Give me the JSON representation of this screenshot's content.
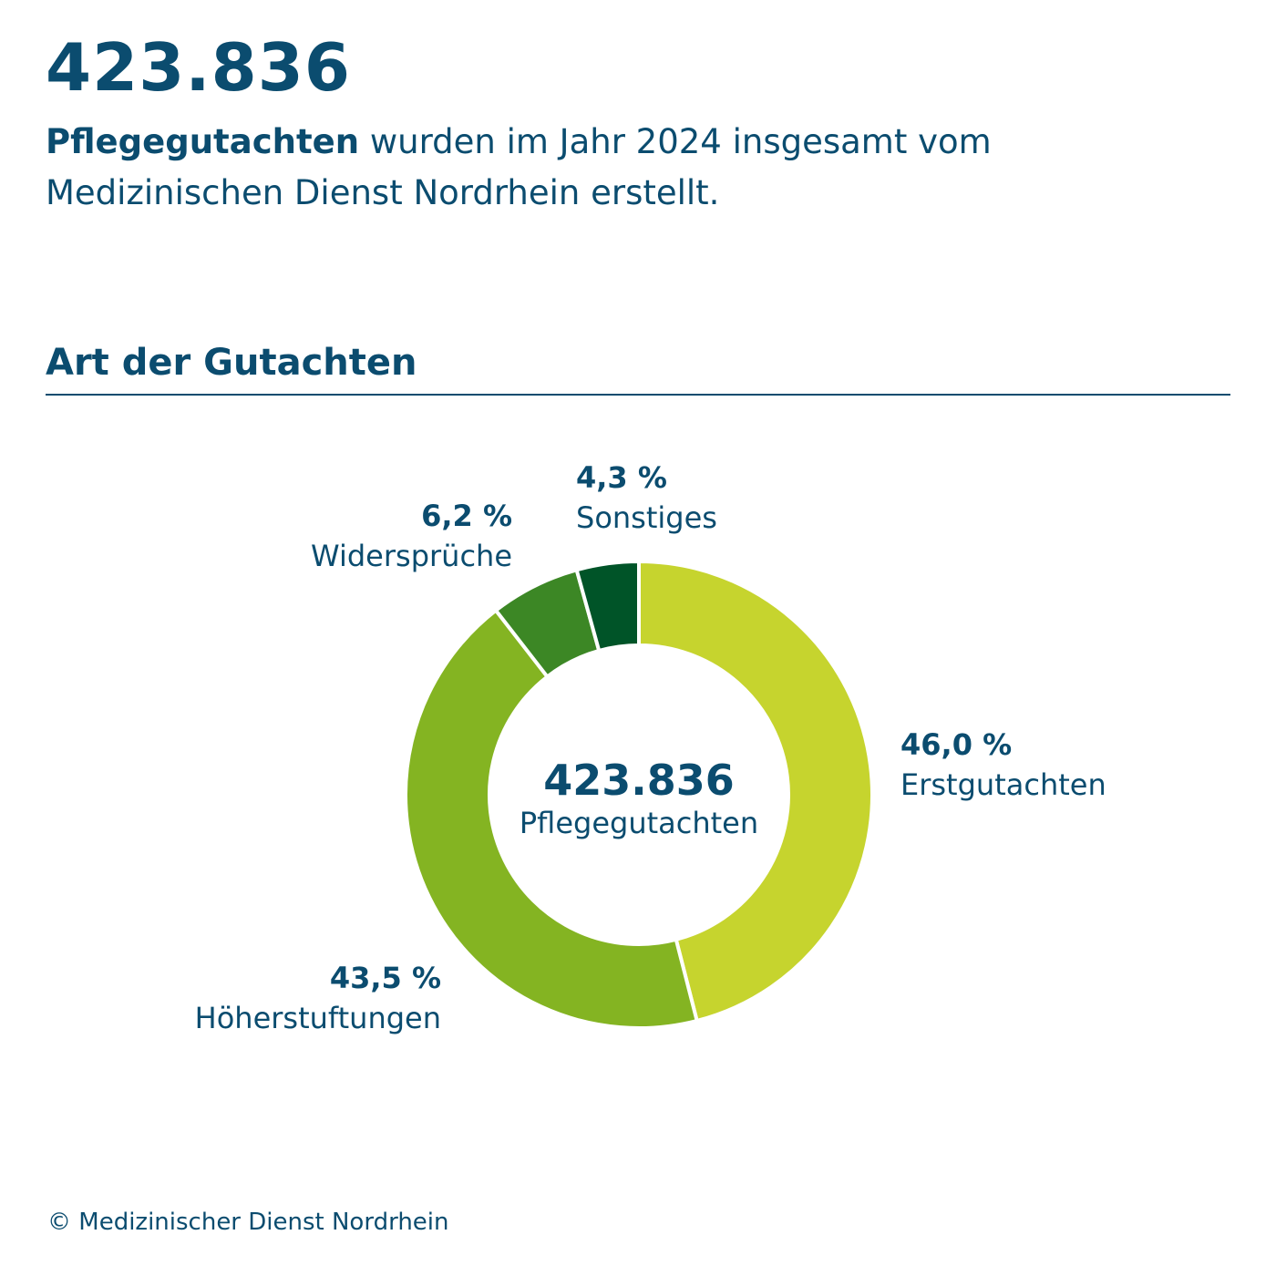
{
  "header": {
    "big_number": "423.836",
    "intro_bold": "Pflegegutachten",
    "intro_rest": " wurden im Jahr 2024 insgesamt vom Medizinischen Dienst Nordrhein erstellt."
  },
  "section_title": "Art der Gutachten",
  "copyright": "© Medizinischer Dienst Nordrhein",
  "chart_data": {
    "type": "pie",
    "title": "",
    "center_value": "423.836",
    "center_label": "Pflegegutachten",
    "slices": [
      {
        "label": "Erstgutachten",
        "value": 46.0,
        "value_label": "46,0 %",
        "color": "#c6d42e"
      },
      {
        "label": "Höherstuftungen",
        "value": 43.5,
        "value_label": "43,5 %",
        "color": "#84b422"
      },
      {
        "label": "Widersprüche",
        "value": 6.2,
        "value_label": "6,2 %",
        "color": "#3c8725"
      },
      {
        "label": "Sonstiges",
        "value": 4.3,
        "value_label": "4,3 %",
        "color": "#005428"
      }
    ],
    "unit": "%",
    "start_angle": "12 o'clock",
    "direction": "clockwise",
    "legend": "none"
  }
}
